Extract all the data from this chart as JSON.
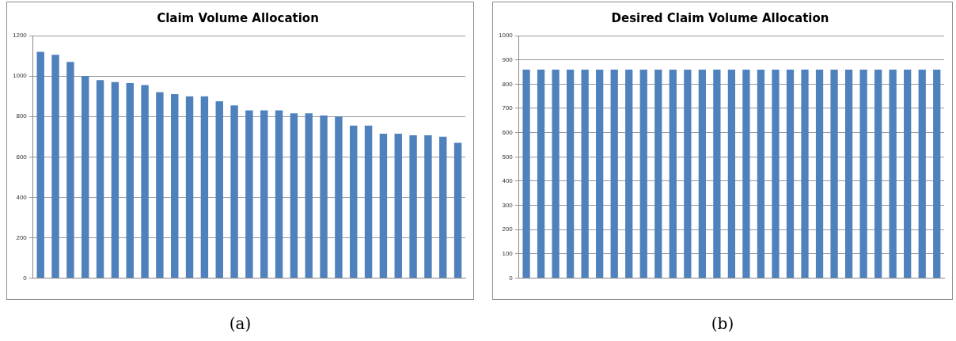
{
  "chart_data": [
    {
      "type": "bar",
      "title": "Claim Volume Allocation",
      "categories": [
        null,
        null,
        null,
        null,
        null,
        null,
        null,
        null,
        null,
        null,
        null,
        null,
        null,
        null,
        null,
        null,
        null,
        null,
        null,
        null,
        null,
        null,
        null,
        null,
        null,
        null,
        null,
        null,
        null
      ],
      "values": [
        1120,
        1105,
        1070,
        1000,
        980,
        970,
        965,
        955,
        920,
        910,
        900,
        900,
        875,
        855,
        830,
        830,
        830,
        815,
        815,
        805,
        800,
        755,
        755,
        715,
        715,
        707,
        707,
        700,
        670
      ],
      "color": "#4f81bd",
      "ylim": [
        0,
        1200
      ],
      "yticks": [
        0,
        200,
        400,
        600,
        800,
        1000,
        1200
      ],
      "grid": "y",
      "legend": false,
      "annotations": [
        "(a)"
      ]
    },
    {
      "type": "bar",
      "title": "Desired Claim Volume Allocation",
      "categories": [
        null,
        null,
        null,
        null,
        null,
        null,
        null,
        null,
        null,
        null,
        null,
        null,
        null,
        null,
        null,
        null,
        null,
        null,
        null,
        null,
        null,
        null,
        null,
        null,
        null,
        null,
        null,
        null,
        null
      ],
      "values": [
        860,
        860,
        860,
        860,
        860,
        860,
        860,
        860,
        860,
        860,
        860,
        860,
        860,
        860,
        860,
        860,
        860,
        860,
        860,
        860,
        860,
        860,
        860,
        860,
        860,
        860,
        860,
        860,
        860
      ],
      "color": "#4f81bd",
      "ylim": [
        0,
        1000
      ],
      "yticks": [
        0,
        100,
        200,
        300,
        400,
        500,
        600,
        700,
        800,
        900,
        1000
      ],
      "grid": "y",
      "legend": false,
      "annotations": [
        "(b)"
      ]
    }
  ]
}
